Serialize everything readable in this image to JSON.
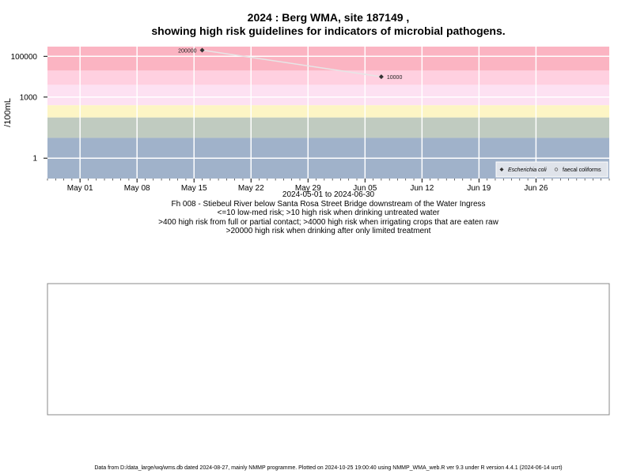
{
  "chart_data": {
    "type": "scatter",
    "title": "2024 : Berg WMA, site 187149 ,",
    "subtitle": "showing high risk guidelines for indicators of microbial pathogens.",
    "ylabel": "/100mL",
    "y_scale": "log10",
    "ylim": [
      0.1,
      300000
    ],
    "xlim": [
      "2024-04-27",
      "2024-07-05"
    ],
    "x_ticks": [
      {
        "date": "2024-05-01",
        "label": "May 01"
      },
      {
        "date": "2024-05-08",
        "label": "May 08"
      },
      {
        "date": "2024-05-15",
        "label": "May 15"
      },
      {
        "date": "2024-05-22",
        "label": "May 22"
      },
      {
        "date": "2024-05-29",
        "label": "May 29"
      },
      {
        "date": "2024-06-05",
        "label": "Jun 05"
      },
      {
        "date": "2024-06-12",
        "label": "Jun 12"
      },
      {
        "date": "2024-06-19",
        "label": "Jun 19"
      },
      {
        "date": "2024-06-26",
        "label": "Jun 26"
      }
    ],
    "y_ticks": [
      {
        "value": 1,
        "label": "1"
      },
      {
        "value": 1000,
        "label": "1000"
      },
      {
        "value": 100000,
        "label": "100000"
      }
    ],
    "bands": [
      {
        "from": 0.1,
        "to": 10,
        "color": "#a0b2ca"
      },
      {
        "from": 10,
        "to": 100,
        "color": "#c0cbc0"
      },
      {
        "from": 100,
        "to": 400,
        "color": "#fdf5c5"
      },
      {
        "from": 400,
        "to": 4000,
        "color": "#fde1f2"
      },
      {
        "from": 4000,
        "to": 20000,
        "color": "#ffd0e0"
      },
      {
        "from": 20000,
        "to": 300000,
        "color": "#fbb4c2"
      }
    ],
    "grid": true,
    "legend_position": "bottom-right",
    "series": [
      {
        "name": "Escherichia coli",
        "marker": "diamond",
        "color": "#333333",
        "points": [
          {
            "date": "2024-05-16",
            "value": 200000,
            "label": "200000"
          },
          {
            "date": "2024-06-07",
            "value": 10000,
            "label": "10000"
          }
        ]
      },
      {
        "name": "faecal coliforms",
        "marker": "open-circle",
        "color": "#666666",
        "points": []
      }
    ],
    "date_range_label": "2024-05-01 to 2024-06-30",
    "annotations": [
      "Fh 008 - Stiebeul River below Santa Rosa Street Bridge downstream of the Water Ingress",
      "<=10 low-med risk; >10 high risk when drinking untreated water",
      ">400 high risk from full or partial contact; >4000 high risk when irrigating crops that are eaten raw",
      ">20000 high risk when drinking after only limited treatment"
    ]
  },
  "footer": "Data from D:/data_large/wq/wms.db dated 2024-08-27, mainly NMMP programme. Plotted on 2024-10-25 19:00:40 using NMMP_WMA_web.R ver 9.3 under R version 4.4.1 (2024-06-14 ucrt)"
}
